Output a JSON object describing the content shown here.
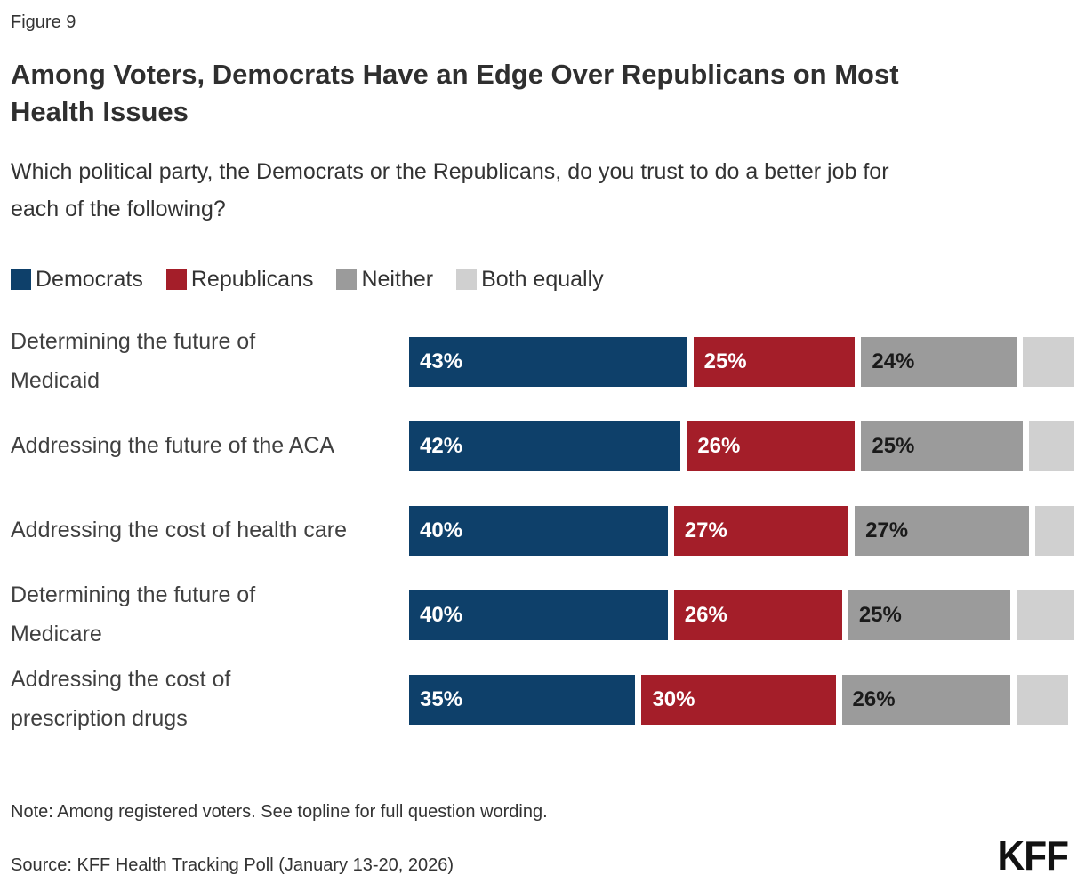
{
  "figure_label": "Figure 9",
  "title": "Among Voters, Democrats Have an Edge Over Republicans on Most Health Issues",
  "subtitle": "Which political party, the Democrats or the Republicans, do you trust to do a better job for each of the following?",
  "colors": {
    "democrats": "#0E406A",
    "republicans": "#A41E29",
    "neither": "#9B9B9B",
    "both_equally": "#D0D0D0",
    "label_on_dark": "#FFFFFF",
    "label_on_gray": "#1A1A1A"
  },
  "legend": [
    {
      "label": "Democrats",
      "color": "#0E406A"
    },
    {
      "label": "Republicans",
      "color": "#A41E29"
    },
    {
      "label": "Neither",
      "color": "#9B9B9B"
    },
    {
      "label": "Both equally",
      "color": "#D0D0D0"
    }
  ],
  "chart_data": {
    "type": "bar",
    "orientation": "horizontal",
    "stacked": true,
    "xlim": [
      0,
      100
    ],
    "value_suffix": "%",
    "grid": false,
    "categories": [
      "Determining the future of Medicaid",
      "Addressing the future of the ACA",
      "Addressing the cost of health care",
      "Determining the future of Medicare",
      "Addressing the cost of prescription drugs"
    ],
    "series": [
      {
        "name": "Democrats",
        "color": "#0E406A",
        "text_color": "#FFFFFF",
        "show_labels": true,
        "values": [
          43,
          42,
          40,
          40,
          35
        ]
      },
      {
        "name": "Republicans",
        "color": "#A41E29",
        "text_color": "#FFFFFF",
        "show_labels": true,
        "values": [
          25,
          26,
          27,
          26,
          30
        ]
      },
      {
        "name": "Neither",
        "color": "#9B9B9B",
        "text_color": "#1A1A1A",
        "show_labels": true,
        "values": [
          24,
          25,
          27,
          25,
          26
        ]
      },
      {
        "name": "Both equally",
        "color": "#D0D0D0",
        "text_color": "#1A1A1A",
        "show_labels": false,
        "values": [
          8,
          7,
          6,
          9,
          8
        ]
      }
    ]
  },
  "note": "Note: Among registered voters. See topline for full question wording.",
  "source": "Source: KFF Health Tracking Poll (January 13-20, 2026)",
  "logo_text": "KFF"
}
